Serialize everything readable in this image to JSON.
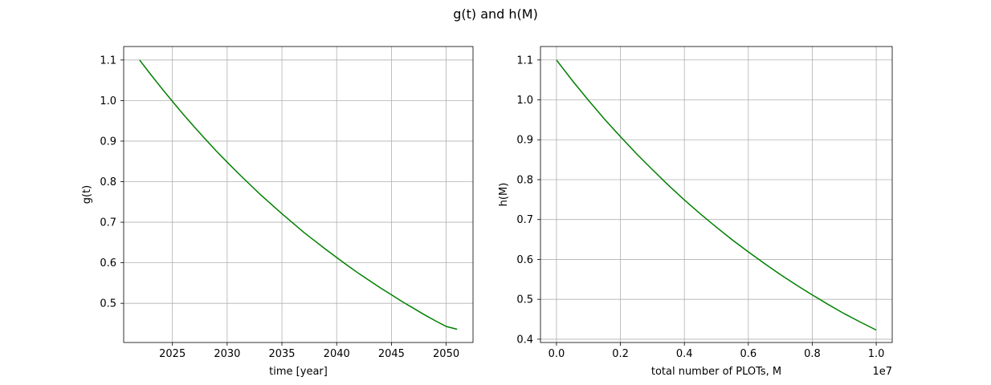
{
  "figure": {
    "suptitle": "g(t) and h(M)"
  },
  "chart_data": [
    {
      "type": "line",
      "title": "",
      "xlabel": "time [year]",
      "ylabel": "g(t)",
      "xlim": [
        2020.55,
        2052.45
      ],
      "ylim": [
        0.4034,
        1.1333
      ],
      "xticks": [
        2025,
        2030,
        2035,
        2040,
        2045,
        2050
      ],
      "xtick_labels": [
        "2025",
        "2030",
        "2035",
        "2040",
        "2045",
        "2050"
      ],
      "yticks": [
        0.5,
        0.6,
        0.7,
        0.8,
        0.9,
        1.0,
        1.1
      ],
      "ytick_labels": [
        "0.5",
        "0.6",
        "0.7",
        "0.8",
        "0.9",
        "1.0",
        "1.1"
      ],
      "offset_text": "",
      "grid": true,
      "color": "#008000",
      "series": [
        {
          "x": [
            2022,
            2023,
            2024,
            2025,
            2026,
            2027,
            2028,
            2029,
            2030,
            2031,
            2032,
            2033,
            2034,
            2035,
            2036,
            2037,
            2038,
            2039,
            2040,
            2041,
            2042,
            2043,
            2044,
            2045,
            2046,
            2047,
            2048,
            2049,
            2050,
            2051
          ],
          "y": [
            1.1,
            1.065,
            1.031,
            0.998,
            0.966,
            0.935,
            0.905,
            0.876,
            0.848,
            0.821,
            0.795,
            0.769,
            0.745,
            0.721,
            0.698,
            0.675,
            0.654,
            0.633,
            0.613,
            0.593,
            0.574,
            0.556,
            0.538,
            0.521,
            0.504,
            0.488,
            0.472,
            0.457,
            0.443,
            0.436
          ]
        }
      ]
    },
    {
      "type": "line",
      "title": "",
      "xlabel": "total number of PLOTs, M",
      "ylabel": "h(M)",
      "xlim": [
        -0.05,
        1.05
      ],
      "ylim": [
        0.3918,
        1.1337
      ],
      "xticks": [
        0.0,
        0.2,
        0.4,
        0.6,
        0.8,
        1.0
      ],
      "xtick_labels": [
        "0.0",
        "0.2",
        "0.4",
        "0.6",
        "0.8",
        "1.0"
      ],
      "yticks": [
        0.4,
        0.5,
        0.6,
        0.7,
        0.8,
        0.9,
        1.0,
        1.1
      ],
      "ytick_labels": [
        "0.4",
        "0.5",
        "0.6",
        "0.7",
        "0.8",
        "0.9",
        "1.0",
        "1.1"
      ],
      "offset_text": "1e7",
      "grid": true,
      "color": "#008000",
      "series": [
        {
          "x": [
            0.0,
            0.05,
            0.1,
            0.15,
            0.2,
            0.25,
            0.3,
            0.35,
            0.4,
            0.45,
            0.5,
            0.55,
            0.6,
            0.65,
            0.7,
            0.75,
            0.8,
            0.85,
            0.9,
            0.95,
            1.0
          ],
          "y": [
            1.1,
            1.048,
            0.999,
            0.952,
            0.908,
            0.865,
            0.825,
            0.786,
            0.749,
            0.714,
            0.681,
            0.649,
            0.619,
            0.59,
            0.562,
            0.536,
            0.511,
            0.487,
            0.464,
            0.443,
            0.423
          ]
        }
      ]
    }
  ]
}
